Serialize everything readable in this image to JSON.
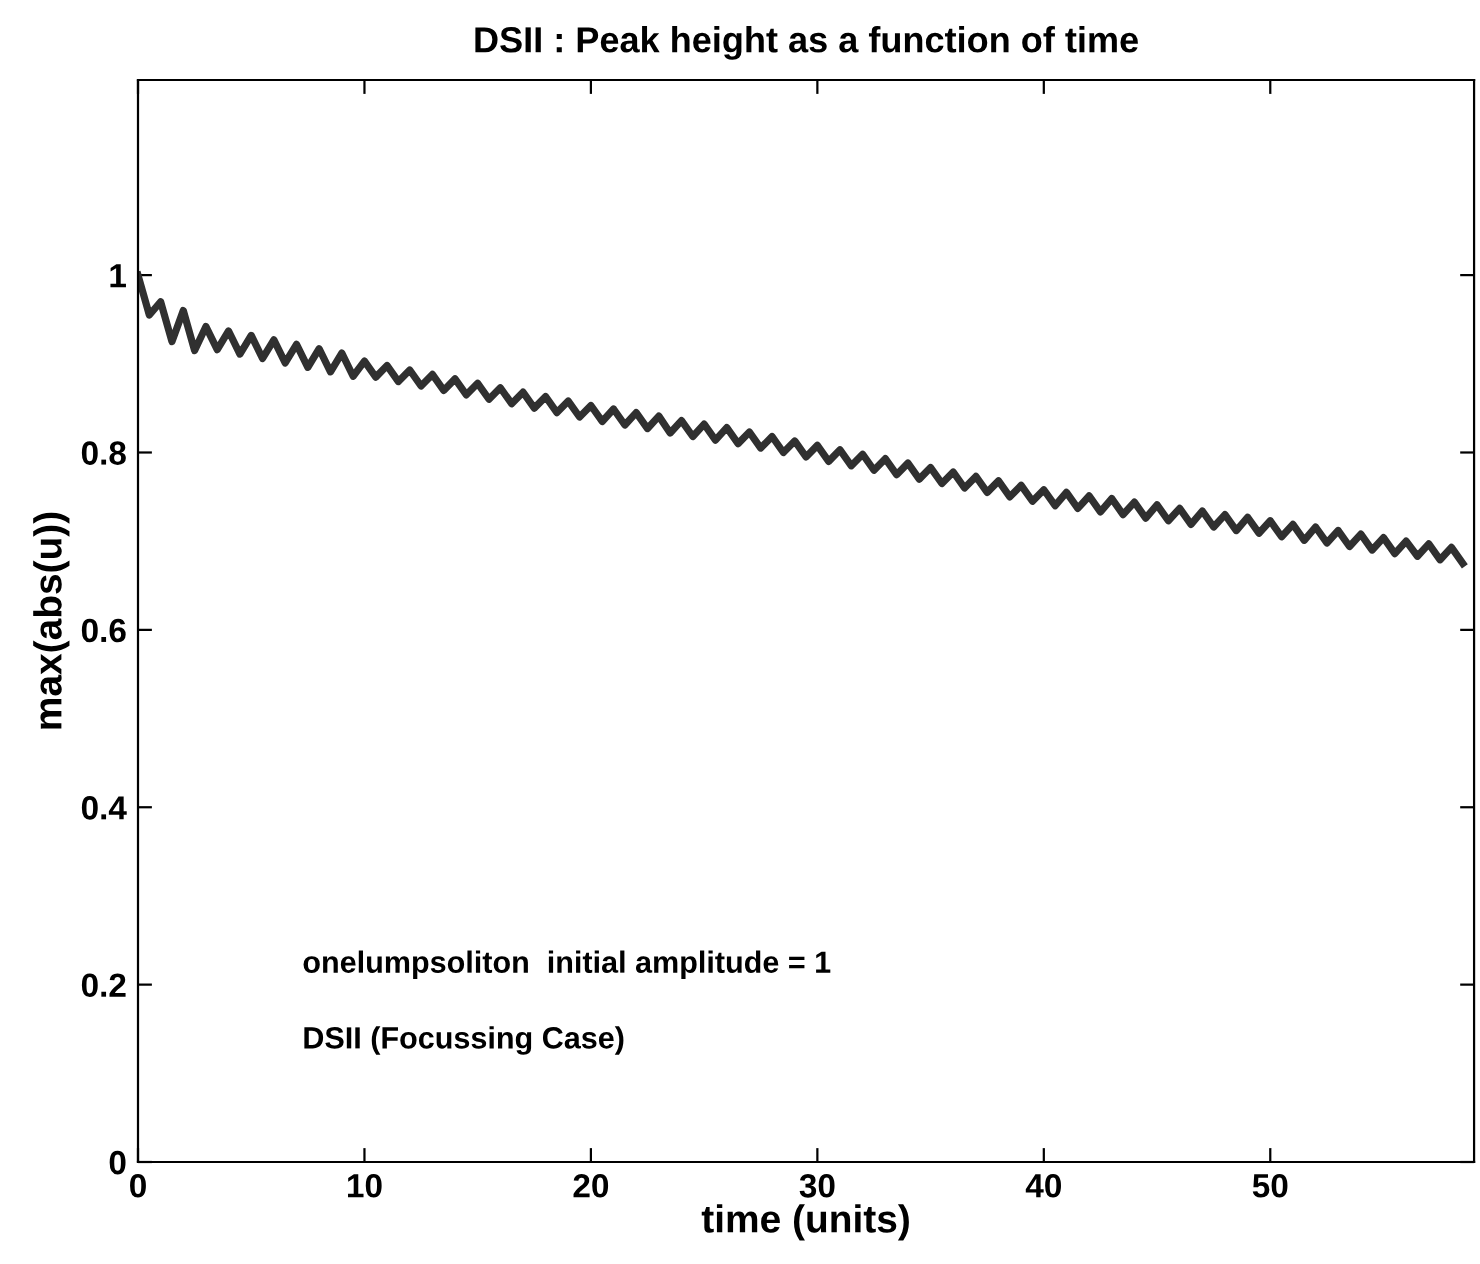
{
  "chart_data": {
    "type": "line",
    "title": "DSII : Peak height as a function of time",
    "xlabel": "time (units)",
    "ylabel": "max(abs(u))",
    "annotations": [
      "onelumpsoliton  initial amplitude = 1",
      "DSII (Focussing Case)"
    ],
    "xlim": [
      0,
      59
    ],
    "ylim": [
      0,
      1.22
    ],
    "xticks": [
      0,
      10,
      20,
      30,
      40,
      50
    ],
    "yticks": [
      0,
      0.2,
      0.4,
      0.6,
      0.8,
      1
    ],
    "grid": false,
    "marker": "none",
    "line_style": "solid",
    "series": [
      {
        "color": "#303030",
        "x": [
          0,
          0.5,
          1,
          1.5,
          2,
          2.5,
          3,
          3.5,
          4,
          4.5,
          5,
          5.5,
          6,
          6.5,
          7,
          7.5,
          8,
          8.5,
          9,
          9.5,
          10,
          10.5,
          11,
          11.5,
          12,
          12.5,
          13,
          13.5,
          14,
          14.5,
          15,
          15.5,
          16,
          16.5,
          17,
          17.5,
          18,
          18.5,
          19,
          19.5,
          20,
          20.5,
          21,
          21.5,
          22,
          22.5,
          23,
          23.5,
          24,
          24.5,
          25,
          25.5,
          26,
          26.5,
          27,
          27.5,
          28,
          28.5,
          29,
          29.5,
          30,
          30.5,
          31,
          31.5,
          32,
          32.5,
          33,
          33.5,
          34,
          34.5,
          35,
          35.5,
          36,
          36.5,
          37,
          37.5,
          38,
          38.5,
          39,
          39.5,
          40,
          40.5,
          41,
          41.5,
          42,
          42.5,
          43,
          43.5,
          44,
          44.5,
          45,
          45.5,
          46,
          46.5,
          47,
          47.5,
          48,
          48.5,
          49,
          49.5,
          50,
          50.5,
          51,
          51.5,
          52,
          52.5,
          53,
          53.5,
          54,
          54.5,
          55,
          55.5,
          56,
          56.5,
          57,
          57.5,
          58,
          58.5
        ],
        "values": [
          1.0,
          0.955,
          0.97,
          0.925,
          0.96,
          0.915,
          0.942,
          0.916,
          0.937,
          0.911,
          0.932,
          0.906,
          0.927,
          0.901,
          0.922,
          0.896,
          0.917,
          0.891,
          0.912,
          0.886,
          0.903,
          0.885,
          0.898,
          0.88,
          0.893,
          0.875,
          0.888,
          0.87,
          0.883,
          0.865,
          0.878,
          0.86,
          0.873,
          0.855,
          0.868,
          0.85,
          0.863,
          0.845,
          0.858,
          0.84,
          0.853,
          0.835,
          0.849,
          0.831,
          0.845,
          0.827,
          0.841,
          0.822,
          0.836,
          0.818,
          0.832,
          0.814,
          0.828,
          0.81,
          0.823,
          0.805,
          0.818,
          0.8,
          0.813,
          0.795,
          0.808,
          0.79,
          0.803,
          0.785,
          0.798,
          0.78,
          0.793,
          0.775,
          0.788,
          0.77,
          0.783,
          0.765,
          0.778,
          0.76,
          0.773,
          0.755,
          0.768,
          0.75,
          0.763,
          0.745,
          0.758,
          0.74,
          0.755,
          0.737,
          0.751,
          0.733,
          0.748,
          0.73,
          0.744,
          0.726,
          0.741,
          0.723,
          0.737,
          0.719,
          0.734,
          0.716,
          0.73,
          0.712,
          0.727,
          0.709,
          0.723,
          0.705,
          0.719,
          0.701,
          0.716,
          0.698,
          0.712,
          0.694,
          0.708,
          0.69,
          0.704,
          0.686,
          0.7,
          0.683,
          0.697,
          0.679,
          0.693,
          0.675
        ]
      }
    ]
  }
}
